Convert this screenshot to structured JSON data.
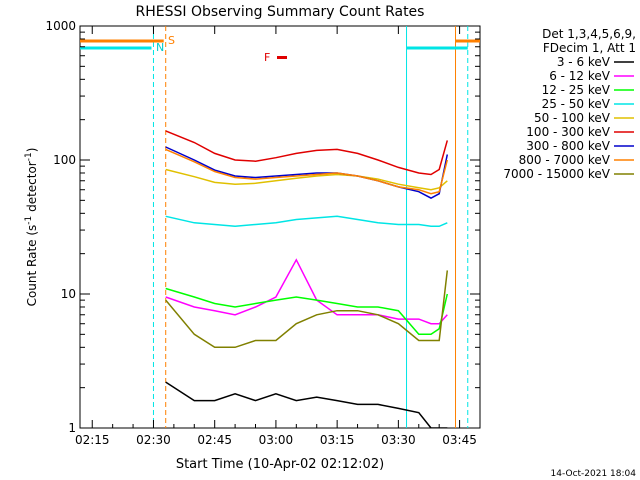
{
  "chart_data": {
    "type": "line",
    "title": "RHESSI Observing Summary Count Rates",
    "xlabel": "Start Time (10-Apr-02 02:12:02)",
    "ylabel": "Count Rate (s⁻¹ detector⁻¹)",
    "yscale": "log",
    "ylim": [
      1,
      1000
    ],
    "xlim": [
      "02:12",
      "03:50"
    ],
    "x_ticks": [
      "02:15",
      "02:30",
      "02:45",
      "03:00",
      "03:15",
      "03:30",
      "03:45"
    ],
    "y_ticks": [
      "1",
      "10",
      "100",
      "1000"
    ],
    "grid": false,
    "legend_placement": "outside-right",
    "legend_header": [
      "Det 1,3,4,5,6,9,",
      "FDecim 1, Att 1"
    ],
    "footer_date": "14-Oct-2021 18:04",
    "x": [
      "02:33",
      "02:40",
      "02:45",
      "02:50",
      "02:55",
      "03:00",
      "03:05",
      "03:10",
      "03:15",
      "03:20",
      "03:25",
      "03:30",
      "03:35",
      "03:38",
      "03:40",
      "03:42"
    ],
    "series": [
      {
        "name": "3 - 6 keV",
        "color": "#000000",
        "values": [
          2.2,
          1.6,
          1.6,
          1.8,
          1.6,
          1.8,
          1.6,
          1.7,
          1.6,
          1.5,
          1.5,
          1.4,
          1.3,
          1.0,
          1.0,
          1.0
        ]
      },
      {
        "name": "6 - 12 keV",
        "color": "#ff00ff",
        "values": [
          9.5,
          8.0,
          7.5,
          7.0,
          8.0,
          9.5,
          18.0,
          9.0,
          7.0,
          7.0,
          7.0,
          6.5,
          6.5,
          6.0,
          6.0,
          7.0
        ]
      },
      {
        "name": "12 - 25 keV",
        "color": "#00ff00",
        "values": [
          11.0,
          9.5,
          8.5,
          8.0,
          8.5,
          9.0,
          9.5,
          9.0,
          8.5,
          8.0,
          8.0,
          7.5,
          5.0,
          5.0,
          5.5,
          10.0
        ]
      },
      {
        "name": "25 - 50 keV",
        "color": "#00e5e5",
        "values": [
          38,
          34,
          33,
          32,
          33,
          34,
          36,
          37,
          38,
          36,
          34,
          33,
          33,
          32,
          32,
          34
        ]
      },
      {
        "name": "50 - 100 keV",
        "color": "#e0c000",
        "values": [
          85,
          75,
          68,
          66,
          67,
          70,
          73,
          76,
          78,
          76,
          72,
          66,
          62,
          60,
          62,
          70
        ]
      },
      {
        "name": "100 - 300 keV",
        "color": "#e00000",
        "values": [
          165,
          135,
          112,
          100,
          98,
          104,
          112,
          118,
          120,
          112,
          100,
          88,
          80,
          78,
          85,
          140
        ]
      },
      {
        "name": "300 - 800 keV",
        "color": "#0000cc",
        "values": [
          125,
          100,
          84,
          76,
          74,
          76,
          78,
          80,
          80,
          76,
          70,
          63,
          58,
          52,
          56,
          110
        ]
      },
      {
        "name": "800 - 7000 keV",
        "color": "#ff8000",
        "values": [
          120,
          97,
          82,
          74,
          72,
          74,
          76,
          78,
          80,
          76,
          70,
          63,
          60,
          56,
          58,
          100
        ]
      },
      {
        "name": "7000 - 15000 keV",
        "color": "#808000",
        "values": [
          9.0,
          5.0,
          4.0,
          4.0,
          4.5,
          4.5,
          6.0,
          7.0,
          7.5,
          7.5,
          7.0,
          6.0,
          4.5,
          4.5,
          4.5,
          15.0
        ]
      }
    ],
    "annotations": [
      {
        "label": "S",
        "time": "02:33"
      },
      {
        "label": "N",
        "time": "02:30"
      },
      {
        "label": "F",
        "time": "03:00"
      }
    ]
  }
}
